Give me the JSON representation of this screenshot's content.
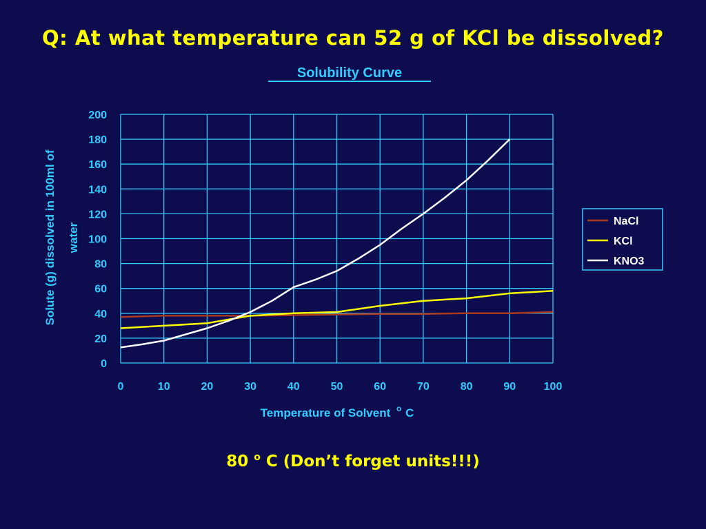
{
  "slide": {
    "question": "Q: At what temperature can 52 g of KCl be dissolved?",
    "answer_prefix": "80 ",
    "answer_degree": "o",
    "answer_suffix": " C (Don’t forget units!!!)"
  },
  "colors": {
    "background": "#0c0c4e",
    "text_yellow": "#ffff00",
    "chart_cyan": "#33ccff",
    "grid": "#33ccff",
    "NaCl": "#aa3a1e",
    "KCl": "#ffff00",
    "KNO3": "#ffffff"
  },
  "chart_data": {
    "type": "line",
    "title": "Solubility Curve",
    "xlabel": "Temperature of Solvent",
    "xlabel_unit_degree": "o",
    "xlabel_unit": "C",
    "ylabel_line1": "Solute (g) dissolved in 100ml of",
    "ylabel_line2": "water",
    "xlim": [
      0,
      100
    ],
    "ylim": [
      0,
      200
    ],
    "x_ticks": [
      0,
      10,
      20,
      30,
      40,
      50,
      60,
      70,
      80,
      90,
      100
    ],
    "y_ticks": [
      0,
      20,
      40,
      60,
      80,
      100,
      120,
      140,
      160,
      180,
      200
    ],
    "grid": true,
    "legend_position": "right",
    "series": [
      {
        "name": "NaCl",
        "x": [
          0,
          10,
          20,
          30,
          40,
          50,
          60,
          70,
          80,
          90,
          100
        ],
        "y": [
          37,
          38,
          38,
          38,
          38.5,
          39,
          39.5,
          39.5,
          40,
          40,
          41
        ]
      },
      {
        "name": "KCl",
        "x": [
          0,
          10,
          20,
          30,
          40,
          50,
          60,
          70,
          80,
          90,
          100
        ],
        "y": [
          28,
          30,
          32,
          38,
          40,
          41,
          46,
          50,
          52,
          56,
          58
        ]
      },
      {
        "name": "KNO3",
        "x": [
          0,
          5,
          10,
          15,
          20,
          25,
          30,
          35,
          40,
          45,
          50,
          55,
          60,
          65,
          70,
          75,
          80,
          85,
          90
        ],
        "y": [
          12.5,
          15,
          18,
          23,
          28,
          34,
          41,
          50,
          61,
          67,
          74,
          84,
          95,
          108,
          120,
          133,
          147,
          163,
          180
        ]
      }
    ]
  }
}
